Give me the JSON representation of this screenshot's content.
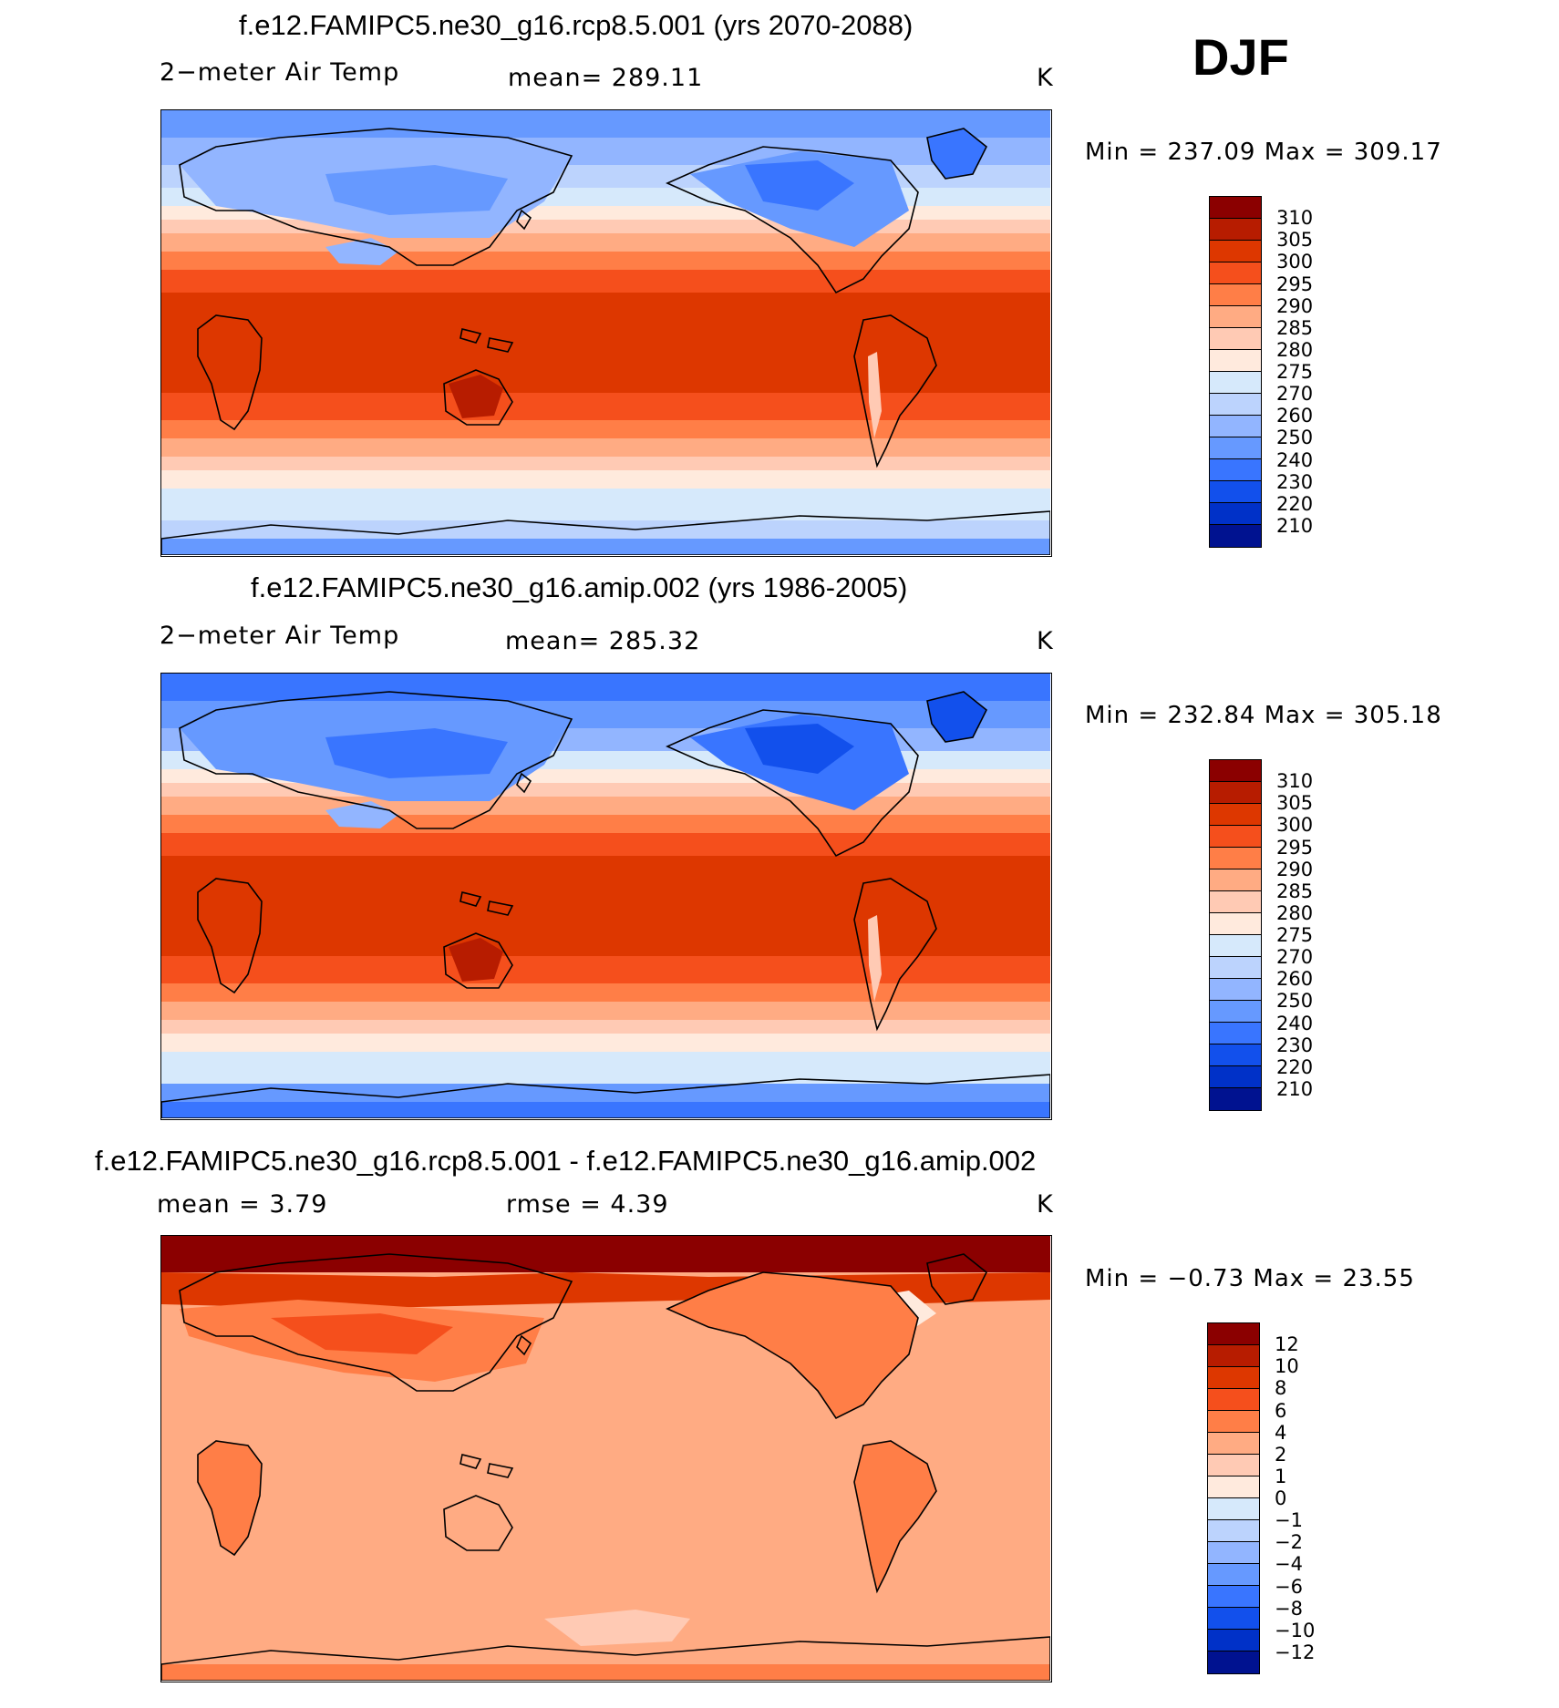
{
  "season": "DJF",
  "panels": [
    {
      "id": "future",
      "title": "f.e12.FAMIPC5.ne30_g16.rcp8.5.001 (yrs 2070-2088)",
      "variable": "2−meter Air Temp",
      "stat_text": "mean=  289.11",
      "units": "K",
      "minmax": "Min  =  237.09  Max  =  309.17",
      "colorbar": {
        "labels": [
          "310",
          "305",
          "300",
          "295",
          "290",
          "285",
          "280",
          "275",
          "270",
          "260",
          "250",
          "240",
          "230",
          "220",
          "210"
        ],
        "colors": [
          "#8b0000",
          "#b71c00",
          "#dd3700",
          "#f54f1c",
          "#ff7e47",
          "#ffab83",
          "#ffcab4",
          "#ffeadd",
          "#d6e9fb",
          "#bcd3fd",
          "#92b5ff",
          "#6699ff",
          "#3975ff",
          "#1250ec",
          "#0031c8",
          "#001290"
        ]
      },
      "map_style": "abs"
    },
    {
      "id": "present",
      "title": "f.e12.FAMIPC5.ne30_g16.amip.002 (yrs 1986-2005)",
      "variable": "2−meter Air Temp",
      "stat_text": "mean=  285.32",
      "units": "K",
      "minmax": "Min  =  232.84  Max  =  305.18",
      "colorbar": {
        "labels": [
          "310",
          "305",
          "300",
          "295",
          "290",
          "285",
          "280",
          "275",
          "270",
          "260",
          "250",
          "240",
          "230",
          "220",
          "210"
        ],
        "colors": [
          "#8b0000",
          "#b71c00",
          "#dd3700",
          "#f54f1c",
          "#ff7e47",
          "#ffab83",
          "#ffcab4",
          "#ffeadd",
          "#d6e9fb",
          "#bcd3fd",
          "#92b5ff",
          "#6699ff",
          "#3975ff",
          "#1250ec",
          "#0031c8",
          "#001290"
        ]
      },
      "map_style": "abs"
    },
    {
      "id": "difference",
      "title": "f.e12.FAMIPC5.ne30_g16.rcp8.5.001 - f.e12.FAMIPC5.ne30_g16.amip.002",
      "stat_text": "mean =     3.79",
      "stat2_text": "rmse =     4.39",
      "units": "K",
      "minmax": "Min  =    −0.73  Max  =    23.55",
      "colorbar": {
        "labels": [
          "12",
          "10",
          "8",
          "6",
          "4",
          "2",
          "1",
          "0",
          "−1",
          "−2",
          "−4",
          "−6",
          "−8",
          "−10",
          "−12"
        ],
        "colors": [
          "#8b0000",
          "#b71c00",
          "#dd3700",
          "#f54f1c",
          "#ff7e47",
          "#ffab83",
          "#ffcab4",
          "#ffeadd",
          "#d6e9fb",
          "#bcd3fd",
          "#92b5ff",
          "#6699ff",
          "#3975ff",
          "#1250ec",
          "#0031c8",
          "#001290"
        ]
      },
      "map_style": "diff"
    }
  ]
}
